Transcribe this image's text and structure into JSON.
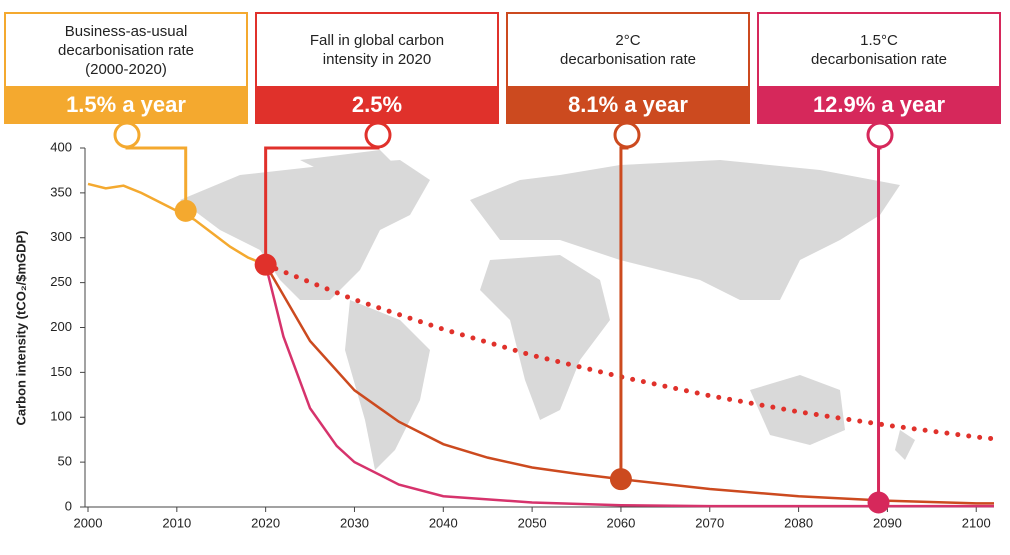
{
  "chart_data": {
    "type": "line",
    "ylabel": "Carbon intensity (tCO₂/$mGDP)",
    "xlim": [
      2000,
      2102
    ],
    "ylim": [
      0,
      400
    ],
    "xticks": [
      2000,
      2010,
      2020,
      2030,
      2040,
      2050,
      2060,
      2070,
      2080,
      2090,
      2100
    ],
    "yticks": [
      0,
      50,
      100,
      150,
      200,
      250,
      300,
      350,
      400
    ],
    "series": [
      {
        "color": "#f4a92f",
        "line_style": "solid",
        "x": [
          2000,
          2002,
          2004,
          2006,
          2008,
          2010,
          2012,
          2014,
          2016,
          2018,
          2020
        ],
        "values": [
          360,
          355,
          358,
          350,
          340,
          330,
          320,
          305,
          290,
          278,
          270
        ]
      },
      {
        "color": "#e0312b",
        "line_style": "dotted",
        "x": [
          2020,
          2030,
          2040,
          2050,
          2060,
          2070,
          2080,
          2090,
          2100,
          2102
        ],
        "values": [
          270,
          231,
          198,
          169,
          145,
          124,
          106,
          91,
          78,
          76
        ]
      },
      {
        "color": "#cc4a1f",
        "line_style": "solid",
        "x": [
          2020,
          2025,
          2030,
          2035,
          2040,
          2045,
          2050,
          2055,
          2060,
          2070,
          2080,
          2090,
          2100,
          2102
        ],
        "values": [
          270,
          185,
          130,
          95,
          70,
          55,
          44,
          37,
          31,
          20,
          12,
          7,
          4,
          4
        ]
      },
      {
        "color": "#d6336c",
        "line_style": "solid",
        "x": [
          2020,
          2022,
          2025,
          2028,
          2030,
          2035,
          2040,
          2050,
          2060,
          2070,
          2090,
          2102
        ],
        "values": [
          270,
          190,
          110,
          68,
          50,
          25,
          12,
          5,
          2,
          1,
          1,
          1
        ]
      }
    ],
    "annotations": [
      {
        "title": [
          "Business-as-usual",
          "decarbonisation rate",
          "(2000-2020)"
        ],
        "label": "1.5% a year",
        "color": "#f4a92f",
        "x": 2011,
        "y": 330
      },
      {
        "title": [
          "Fall in global carbon",
          "intensity in 2020"
        ],
        "label": "2.5%",
        "color": "#e0312b",
        "x": 2020,
        "y": 270
      },
      {
        "title": [
          "2°C",
          "decarbonisation rate"
        ],
        "label": "8.1% a year",
        "color": "#cc4a1f",
        "x": 2060,
        "y": 31
      },
      {
        "title": [
          "1.5°C",
          "decarbonisation rate"
        ],
        "label": "12.9% a year",
        "color": "#d6285b",
        "x": 2089,
        "y": 5
      }
    ]
  }
}
